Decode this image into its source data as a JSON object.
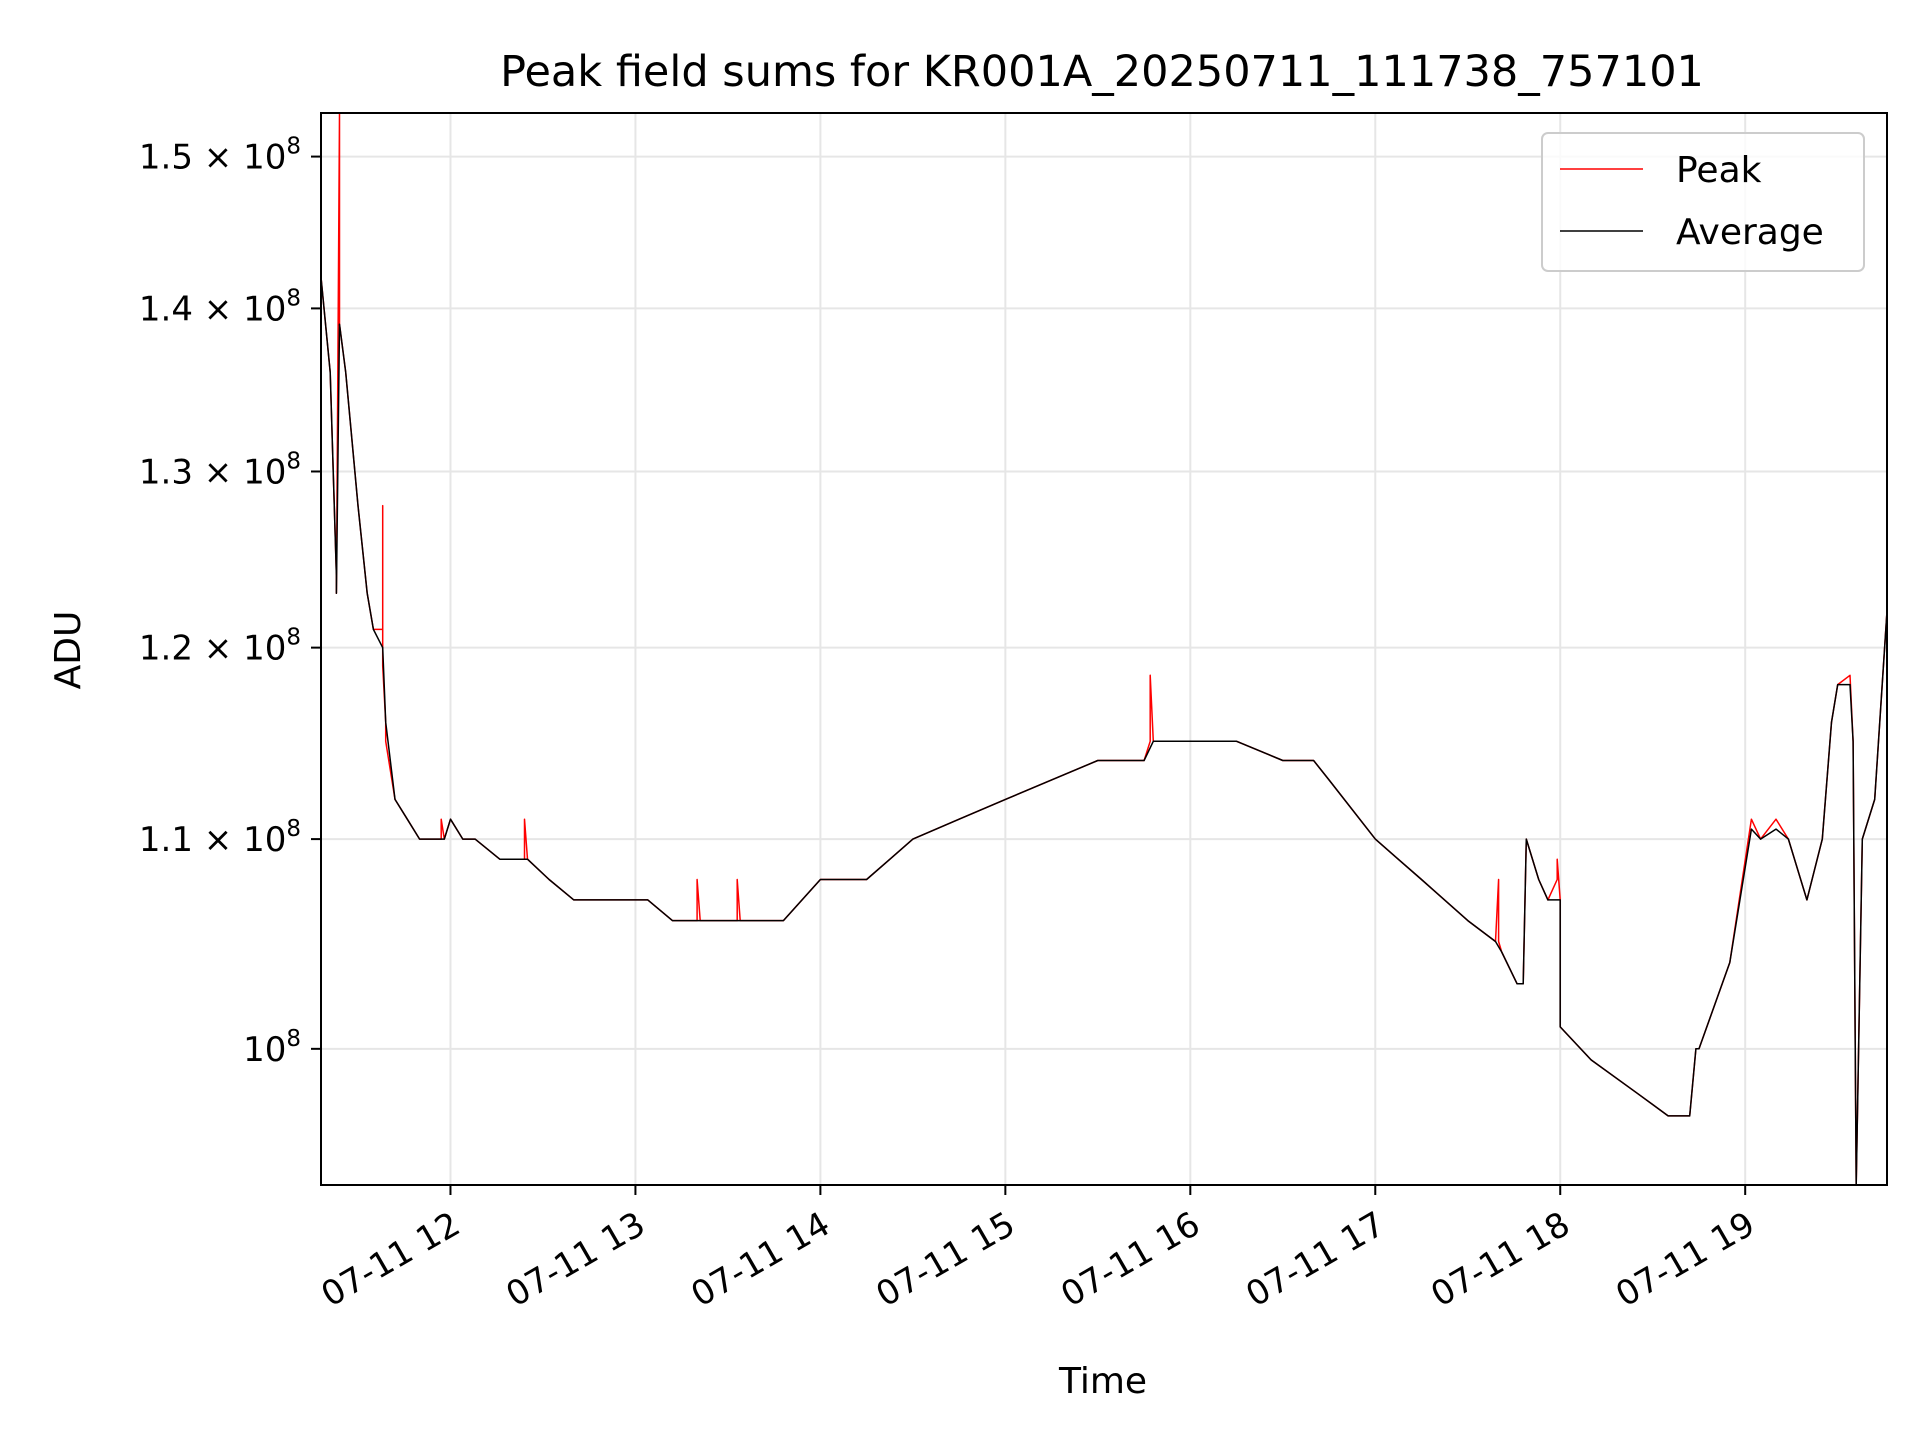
{
  "chart_data": {
    "type": "line",
    "title": "Peak field sums for KR001A_20250711_111738_757101",
    "xlabel": "Time",
    "ylabel": "ADU",
    "x_scale": "time",
    "y_scale": "log",
    "xlim": [
      "2025-07-11 11:18",
      "2025-07-11 19:46"
    ],
    "ylim": [
      94000000,
      153000000
    ],
    "x_ticks": [
      "07-11 12",
      "07-11 13",
      "07-11 14",
      "07-11 15",
      "07-11 16",
      "07-11 17",
      "07-11 18",
      "07-11 19"
    ],
    "y_ticks": [
      {
        "value": 100000000,
        "mantissa": "10",
        "exponent": "8"
      },
      {
        "value": 110000000,
        "mantissa": "1.1 × 10",
        "exponent": "8"
      },
      {
        "value": 120000000,
        "mantissa": "1.2 × 10",
        "exponent": "8"
      },
      {
        "value": 130000000,
        "mantissa": "1.3 × 10",
        "exponent": "8"
      },
      {
        "value": 140000000,
        "mantissa": "1.4 × 10",
        "exponent": "8"
      },
      {
        "value": 150000000,
        "mantissa": "1.5 × 10",
        "exponent": "8"
      }
    ],
    "grid": true,
    "legend_position": "top-right",
    "series": [
      {
        "name": "Peak",
        "color": "#ff0000",
        "x": [
          "2025-07-11 11:18",
          "2025-07-11 11:21",
          "2025-07-11 11:23",
          "2025-07-11 11:23",
          "2025-07-11 11:24",
          "2025-07-11 11:24",
          "2025-07-11 11:26",
          "2025-07-11 11:30",
          "2025-07-11 11:33",
          "2025-07-11 11:35",
          "2025-07-11 11:38",
          "2025-07-11 11:38",
          "2025-07-11 11:38",
          "2025-07-11 11:39",
          "2025-07-11 11:39",
          "2025-07-11 11:42",
          "2025-07-11 11:46",
          "2025-07-11 11:50",
          "2025-07-11 11:57",
          "2025-07-11 11:57",
          "2025-07-11 11:58",
          "2025-07-11 12:00",
          "2025-07-11 12:04",
          "2025-07-11 12:08",
          "2025-07-11 12:16",
          "2025-07-11 12:24",
          "2025-07-11 12:24",
          "2025-07-11 12:25",
          "2025-07-11 12:32",
          "2025-07-11 12:40",
          "2025-07-11 12:48",
          "2025-07-11 12:56",
          "2025-07-11 13:04",
          "2025-07-11 13:12",
          "2025-07-11 13:20",
          "2025-07-11 13:20",
          "2025-07-11 13:21",
          "2025-07-11 13:33",
          "2025-07-11 13:33",
          "2025-07-11 13:34",
          "2025-07-11 13:48",
          "2025-07-11 14:00",
          "2025-07-11 14:15",
          "2025-07-11 14:30",
          "2025-07-11 14:45",
          "2025-07-11 15:00",
          "2025-07-11 15:15",
          "2025-07-11 15:30",
          "2025-07-11 15:45",
          "2025-07-11 15:47",
          "2025-07-11 15:47",
          "2025-07-11 15:48",
          "2025-07-11 16:00",
          "2025-07-11 16:15",
          "2025-07-11 16:30",
          "2025-07-11 16:40",
          "2025-07-11 16:45",
          "2025-07-11 17:00",
          "2025-07-11 17:15",
          "2025-07-11 17:30",
          "2025-07-11 17:39",
          "2025-07-11 17:40",
          "2025-07-11 17:40",
          "2025-07-11 17:41",
          "2025-07-11 17:46",
          "2025-07-11 17:48",
          "2025-07-11 17:49",
          "2025-07-11 17:53",
          "2025-07-11 17:56",
          "2025-07-11 17:59",
          "2025-07-11 17:59",
          "2025-07-11 18:00",
          "2025-07-11 18:00",
          "2025-07-11 18:10",
          "2025-07-11 18:25",
          "2025-07-11 18:35",
          "2025-07-11 18:42",
          "2025-07-11 18:44",
          "2025-07-11 18:45",
          "2025-07-11 18:55",
          "2025-07-11 19:02",
          "2025-07-11 19:05",
          "2025-07-11 19:10",
          "2025-07-11 19:14",
          "2025-07-11 19:20",
          "2025-07-11 19:25",
          "2025-07-11 19:28",
          "2025-07-11 19:30",
          "2025-07-11 19:34",
          "2025-07-11 19:35",
          "2025-07-11 19:36",
          "2025-07-11 19:38",
          "2025-07-11 19:42",
          "2025-07-11 19:46"
        ],
        "values": [
          142000000,
          136000000,
          124000000,
          123000000,
          153000000,
          139000000,
          136000000,
          128000000,
          123000000,
          121000000,
          121000000,
          128000000,
          119000000,
          116000000,
          115000000,
          112000000,
          111000000,
          110000000,
          110000000,
          111000000,
          110000000,
          111000000,
          110000000,
          110000000,
          109000000,
          109000000,
          111000000,
          109000000,
          108000000,
          107000000,
          107000000,
          107000000,
          107000000,
          106000000,
          106000000,
          108000000,
          106000000,
          106000000,
          108000000,
          106000000,
          106000000,
          108000000,
          108000000,
          110000000,
          111000000,
          112000000,
          113000000,
          114000000,
          114000000,
          115000000,
          118500000,
          115000000,
          115000000,
          115000000,
          114000000,
          114000000,
          113000000,
          110000000,
          108000000,
          106000000,
          105000000,
          108000000,
          105000000,
          104500000,
          103000000,
          103000000,
          110000000,
          108000000,
          107000000,
          108000000,
          109000000,
          107000000,
          101000000,
          99500000,
          98000000,
          97000000,
          97000000,
          100000000,
          100000000,
          104000000,
          111000000,
          110000000,
          111000000,
          110000000,
          107000000,
          110000000,
          116000000,
          118000000,
          118500000,
          115000000,
          94000000,
          110000000,
          112000000,
          122000000
        ]
      },
      {
        "name": "Average",
        "color": "#000000",
        "x": [
          "2025-07-11 11:18",
          "2025-07-11 11:21",
          "2025-07-11 11:23",
          "2025-07-11 11:23",
          "2025-07-11 11:24",
          "2025-07-11 11:26",
          "2025-07-11 11:30",
          "2025-07-11 11:33",
          "2025-07-11 11:35",
          "2025-07-11 11:38",
          "2025-07-11 11:39",
          "2025-07-11 11:42",
          "2025-07-11 11:46",
          "2025-07-11 11:50",
          "2025-07-11 11:58",
          "2025-07-11 12:00",
          "2025-07-11 12:04",
          "2025-07-11 12:08",
          "2025-07-11 12:16",
          "2025-07-11 12:25",
          "2025-07-11 12:32",
          "2025-07-11 12:40",
          "2025-07-11 12:48",
          "2025-07-11 12:56",
          "2025-07-11 13:04",
          "2025-07-11 13:12",
          "2025-07-11 13:20",
          "2025-07-11 13:21",
          "2025-07-11 13:33",
          "2025-07-11 13:34",
          "2025-07-11 13:48",
          "2025-07-11 14:00",
          "2025-07-11 14:15",
          "2025-07-11 14:30",
          "2025-07-11 14:45",
          "2025-07-11 15:00",
          "2025-07-11 15:15",
          "2025-07-11 15:30",
          "2025-07-11 15:45",
          "2025-07-11 15:48",
          "2025-07-11 16:00",
          "2025-07-11 16:15",
          "2025-07-11 16:30",
          "2025-07-11 16:40",
          "2025-07-11 16:45",
          "2025-07-11 17:00",
          "2025-07-11 17:15",
          "2025-07-11 17:30",
          "2025-07-11 17:39",
          "2025-07-11 17:41",
          "2025-07-11 17:46",
          "2025-07-11 17:48",
          "2025-07-11 17:49",
          "2025-07-11 17:53",
          "2025-07-11 17:56",
          "2025-07-11 17:59",
          "2025-07-11 18:00",
          "2025-07-11 18:00",
          "2025-07-11 18:10",
          "2025-07-11 18:25",
          "2025-07-11 18:35",
          "2025-07-11 18:42",
          "2025-07-11 18:44",
          "2025-07-11 18:45",
          "2025-07-11 18:55",
          "2025-07-11 19:02",
          "2025-07-11 19:05",
          "2025-07-11 19:10",
          "2025-07-11 19:14",
          "2025-07-11 19:20",
          "2025-07-11 19:25",
          "2025-07-11 19:28",
          "2025-07-11 19:30",
          "2025-07-11 19:34",
          "2025-07-11 19:35",
          "2025-07-11 19:36",
          "2025-07-11 19:38",
          "2025-07-11 19:42",
          "2025-07-11 19:46"
        ],
        "values": [
          142000000,
          136000000,
          124000000,
          123000000,
          139000000,
          136000000,
          128000000,
          123000000,
          121000000,
          120000000,
          116000000,
          112000000,
          111000000,
          110000000,
          110000000,
          111000000,
          110000000,
          110000000,
          109000000,
          109000000,
          108000000,
          107000000,
          107000000,
          107000000,
          107000000,
          106000000,
          106000000,
          106000000,
          106000000,
          106000000,
          106000000,
          108000000,
          108000000,
          110000000,
          111000000,
          112000000,
          113000000,
          114000000,
          114000000,
          115000000,
          115000000,
          115000000,
          114000000,
          114000000,
          113000000,
          110000000,
          108000000,
          106000000,
          105000000,
          104500000,
          103000000,
          103000000,
          110000000,
          108000000,
          107000000,
          107000000,
          107000000,
          101000000,
          99500000,
          98000000,
          97000000,
          97000000,
          100000000,
          100000000,
          104000000,
          110500000,
          110000000,
          110500000,
          110000000,
          107000000,
          110000000,
          116000000,
          118000000,
          118000000,
          115000000,
          94000000,
          110000000,
          112000000,
          122000000
        ]
      }
    ]
  }
}
